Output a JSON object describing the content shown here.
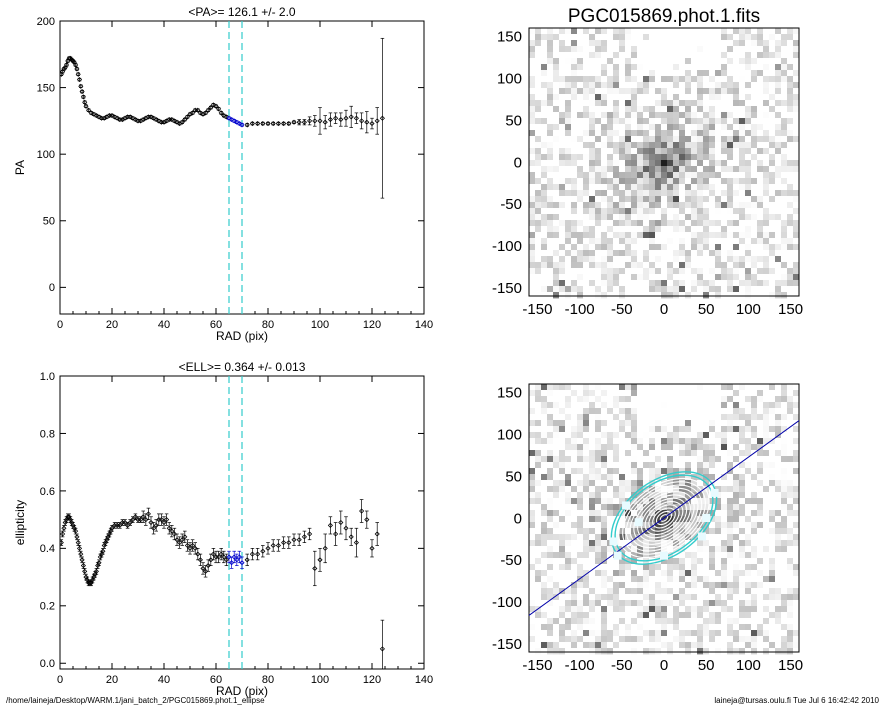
{
  "footer": {
    "left": "/home/laineja/Desktop/WARM.1/jani_batch_2/PGC015869.phot.1_ellipse",
    "right": "laineja@tursas.oulu.fi  Tue Jul  6 16:42:42 2010"
  },
  "colors": {
    "marker": "#000000",
    "highlight": "#0000cc",
    "fit_band": "#33cccc",
    "major_axis_line": "#0000aa"
  },
  "chart_data": [
    {
      "type": "scatter",
      "title": "<PA>= 126.1 +/-   2.0",
      "xlabel": "RAD (pix)",
      "ylabel": "PA",
      "xlim": [
        0,
        140
      ],
      "ylim": [
        -20,
        200
      ],
      "xticks": [
        0,
        20,
        40,
        60,
        80,
        100,
        120,
        140
      ],
      "yticks": [
        0,
        50,
        100,
        150,
        200
      ],
      "vlines": [
        65,
        70
      ],
      "series": [
        {
          "x": [
            0.5,
            1,
            1.5,
            2,
            2.5,
            3,
            3.5,
            4,
            4.5,
            5,
            5.5,
            6,
            6.5,
            7,
            7.5,
            8,
            8.5,
            9,
            9.5,
            10,
            11,
            12,
            13,
            14,
            15,
            16,
            17,
            18,
            19,
            20,
            21,
            22,
            23,
            24,
            25,
            26,
            27,
            28,
            29,
            30,
            31,
            32,
            33,
            34,
            35,
            36,
            37,
            38,
            39,
            40,
            41,
            42,
            43,
            44,
            45,
            46,
            47,
            48,
            49,
            50,
            51,
            52,
            53,
            54,
            55,
            56,
            57,
            58,
            59,
            60,
            61,
            62,
            63,
            64,
            65,
            66,
            67,
            68,
            69,
            70,
            72,
            74,
            76,
            78,
            80,
            82,
            84,
            86,
            88,
            90,
            92,
            94,
            96,
            98,
            100,
            102,
            104,
            106,
            108,
            110,
            112,
            114,
            116,
            118,
            120,
            122,
            124
          ],
          "y": [
            160,
            162,
            164,
            165,
            167,
            170,
            172,
            172,
            171,
            170,
            169,
            167,
            164,
            160,
            156,
            151,
            147,
            143,
            139,
            136,
            133,
            131,
            130,
            129,
            128,
            127,
            127,
            128,
            129,
            129,
            128,
            127,
            126,
            126,
            127,
            128,
            128,
            127,
            126,
            125,
            125,
            126,
            127,
            128,
            128,
            127,
            126,
            125,
            124,
            124,
            125,
            126,
            126,
            125,
            124,
            123,
            124,
            126,
            128,
            130,
            131,
            133,
            133,
            131,
            130,
            131,
            133,
            135,
            137,
            136,
            134,
            131,
            129,
            128,
            127,
            126,
            125,
            124,
            123,
            122,
            122,
            123,
            123,
            123,
            123,
            123,
            123,
            123,
            123,
            124,
            124,
            124,
            125,
            125,
            125,
            124,
            126,
            127,
            126,
            127,
            128,
            127,
            125,
            124,
            123,
            125,
            127
          ],
          "yerr": [
            1,
            1,
            1,
            1,
            1,
            1,
            1,
            1,
            1,
            1,
            1,
            1,
            1,
            1,
            1,
            1,
            1,
            1,
            1,
            1,
            1,
            1,
            1,
            1,
            1,
            1,
            1,
            1,
            1,
            1,
            1,
            1,
            1,
            1,
            1,
            1,
            1,
            1,
            1,
            1,
            1,
            1,
            1,
            1,
            1,
            1,
            1,
            1,
            1,
            1,
            1,
            1,
            1,
            1,
            1,
            1,
            1,
            1,
            1,
            1,
            1,
            1,
            1,
            1,
            1,
            1,
            1,
            1,
            1,
            1,
            1,
            1,
            1,
            1,
            1,
            1,
            1,
            1,
            1,
            1,
            1,
            1,
            1,
            1,
            1,
            1,
            1,
            1,
            1,
            1,
            2,
            2,
            3,
            4,
            10,
            5,
            5,
            4,
            5,
            6,
            8,
            4,
            6,
            8,
            4,
            10,
            60
          ]
        }
      ]
    },
    {
      "type": "scatter",
      "title": "<ELL>= 0.364 +/-  0.013",
      "xlabel": "RAD (pix)",
      "ylabel": "ellipticity",
      "xlim": [
        0,
        140
      ],
      "ylim": [
        -0.02,
        1.0
      ],
      "xticks": [
        0,
        20,
        40,
        60,
        80,
        100,
        120,
        140
      ],
      "yticks": [
        0.0,
        0.2,
        0.4,
        0.6,
        0.8,
        1.0
      ],
      "vlines": [
        65,
        70
      ],
      "series": [
        {
          "x": [
            0.5,
            1,
            1.5,
            2,
            2.5,
            3,
            3.5,
            4,
            4.5,
            5,
            5.5,
            6,
            6.5,
            7,
            7.5,
            8,
            8.5,
            9,
            9.5,
            10,
            10.5,
            11,
            11.5,
            12,
            12.5,
            13,
            13.5,
            14,
            14.5,
            15,
            15.5,
            16,
            16.5,
            17,
            17.5,
            18,
            18.5,
            19,
            19.5,
            20,
            21,
            22,
            23,
            24,
            25,
            26,
            27,
            28,
            29,
            30,
            31,
            32,
            33,
            34,
            35,
            36,
            37,
            38,
            39,
            40,
            41,
            42,
            43,
            44,
            45,
            46,
            47,
            48,
            49,
            50,
            51,
            52,
            53,
            54,
            55,
            56,
            57,
            58,
            59,
            60,
            61,
            62,
            63,
            64,
            65,
            66,
            67,
            68,
            69,
            70,
            72,
            74,
            76,
            78,
            80,
            82,
            84,
            86,
            88,
            90,
            92,
            94,
            96,
            98,
            100,
            102,
            104,
            106,
            108,
            110,
            112,
            114,
            116,
            118,
            120,
            122,
            124
          ],
          "y": [
            0.42,
            0.45,
            0.47,
            0.49,
            0.5,
            0.51,
            0.51,
            0.5,
            0.49,
            0.48,
            0.47,
            0.46,
            0.44,
            0.42,
            0.4,
            0.38,
            0.36,
            0.34,
            0.32,
            0.3,
            0.29,
            0.28,
            0.28,
            0.28,
            0.29,
            0.3,
            0.31,
            0.32,
            0.34,
            0.35,
            0.37,
            0.38,
            0.39,
            0.41,
            0.42,
            0.43,
            0.44,
            0.45,
            0.46,
            0.47,
            0.48,
            0.48,
            0.48,
            0.49,
            0.49,
            0.48,
            0.49,
            0.5,
            0.51,
            0.5,
            0.5,
            0.51,
            0.5,
            0.52,
            0.49,
            0.47,
            0.48,
            0.5,
            0.5,
            0.49,
            0.5,
            0.47,
            0.46,
            0.45,
            0.43,
            0.42,
            0.43,
            0.44,
            0.41,
            0.4,
            0.41,
            0.4,
            0.38,
            0.36,
            0.33,
            0.32,
            0.34,
            0.36,
            0.38,
            0.37,
            0.37,
            0.38,
            0.37,
            0.36,
            0.37,
            0.35,
            0.37,
            0.36,
            0.37,
            0.35,
            0.36,
            0.38,
            0.38,
            0.39,
            0.4,
            0.41,
            0.41,
            0.42,
            0.42,
            0.43,
            0.43,
            0.44,
            0.45,
            0.33,
            0.36,
            0.4,
            0.48,
            0.45,
            0.49,
            0.47,
            0.44,
            0.42,
            0.53,
            0.5,
            0.4,
            0.45,
            0.05
          ],
          "yerr": [
            0.01,
            0.01,
            0.01,
            0.01,
            0.01,
            0.01,
            0.01,
            0.01,
            0.01,
            0.01,
            0.01,
            0.01,
            0.01,
            0.01,
            0.01,
            0.01,
            0.01,
            0.01,
            0.01,
            0.01,
            0.01,
            0.01,
            0.01,
            0.01,
            0.01,
            0.01,
            0.01,
            0.01,
            0.01,
            0.01,
            0.01,
            0.01,
            0.01,
            0.01,
            0.01,
            0.01,
            0.01,
            0.01,
            0.01,
            0.01,
            0.01,
            0.01,
            0.01,
            0.01,
            0.01,
            0.01,
            0.01,
            0.01,
            0.01,
            0.01,
            0.01,
            0.02,
            0.02,
            0.02,
            0.02,
            0.02,
            0.02,
            0.02,
            0.02,
            0.02,
            0.02,
            0.02,
            0.02,
            0.02,
            0.02,
            0.02,
            0.02,
            0.02,
            0.02,
            0.02,
            0.02,
            0.02,
            0.02,
            0.02,
            0.02,
            0.02,
            0.02,
            0.02,
            0.02,
            0.02,
            0.02,
            0.02,
            0.02,
            0.02,
            0.02,
            0.02,
            0.02,
            0.02,
            0.02,
            0.02,
            0.02,
            0.02,
            0.02,
            0.02,
            0.02,
            0.02,
            0.02,
            0.02,
            0.02,
            0.02,
            0.02,
            0.02,
            0.02,
            0.06,
            0.04,
            0.05,
            0.03,
            0.04,
            0.04,
            0.04,
            0.03,
            0.05,
            0.04,
            0.03,
            0.03,
            0.04,
            0.1
          ]
        }
      ]
    },
    {
      "type": "heatmap",
      "title": "PGC015869.phot.1.fits",
      "xlim": [
        -160,
        160
      ],
      "ylim": [
        -160,
        160
      ],
      "xticks": [
        -150,
        -100,
        -50,
        0,
        50,
        100,
        150
      ],
      "yticks": [
        -150,
        -100,
        -50,
        0,
        50,
        100,
        150
      ],
      "colormap": "gray_inverted",
      "galaxy": {
        "center": [
          0,
          0
        ],
        "major_axis_deg": 36,
        "axis_ratio": 0.64,
        "extent": 70
      }
    },
    {
      "type": "heatmap",
      "title": "",
      "xlim": [
        -160,
        160
      ],
      "ylim": [
        -160,
        160
      ],
      "xticks": [
        -150,
        -100,
        -50,
        0,
        50,
        100,
        150
      ],
      "yticks": [
        -150,
        -100,
        -50,
        0,
        50,
        100,
        150
      ],
      "colormap": "gray_inverted",
      "overlay": {
        "isophote_radii": [
          5,
          10,
          15,
          20,
          25,
          30,
          35,
          40,
          45,
          50,
          55,
          60,
          65,
          70
        ],
        "highlight_radii": [
          65,
          70
        ],
        "ellipticity": 0.364,
        "pa_deg": 36,
        "major_axis_line": true
      }
    }
  ]
}
